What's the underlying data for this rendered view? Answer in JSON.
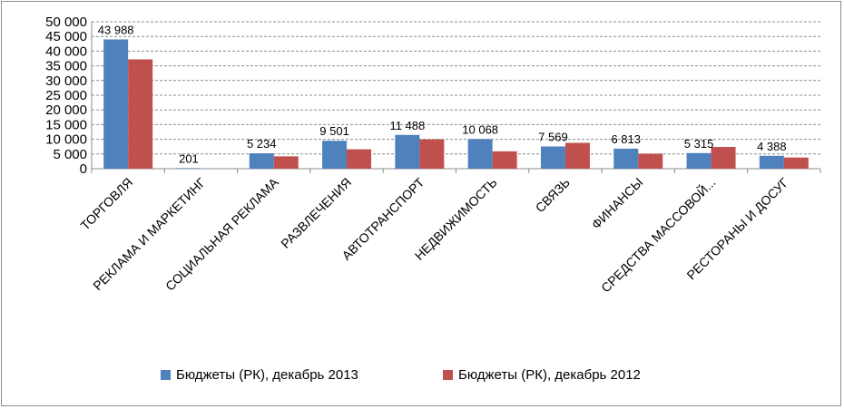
{
  "chart_data": {
    "type": "bar",
    "categories": [
      "ТОРГОВЛЯ",
      "РЕКЛАМА И МАРКЕТИНГ",
      "СОЦИАЛЬНАЯ РЕКЛАМА",
      "РАЗВЛЕЧЕНИЯ",
      "АВТОТРАНСПОРТ",
      "НЕДВИЖИМОСТЬ",
      "СВЯЗЬ",
      "ФИНАНСЫ",
      "СРЕДСТВА МАССОВОЙ...",
      "РЕСТОРАНЫ И ДОСУГ"
    ],
    "series": [
      {
        "name": "Бюджеты (РК), декабрь 2013",
        "color": "#4f81bd",
        "values": [
          43988,
          201,
          5234,
          9501,
          11488,
          10068,
          7569,
          6813,
          5315,
          4388
        ]
      },
      {
        "name": "Бюджеты (РК), декабрь 2012",
        "color": "#c0504d",
        "values": [
          37200,
          0,
          4200,
          6600,
          10000,
          5900,
          8800,
          5100,
          7400,
          3800
        ]
      }
    ],
    "data_labels": [
      "43 988",
      "201",
      "5 234",
      "9 501",
      "11 488",
      "10 068",
      "7 569",
      "6 813",
      "5 315",
      "4 388"
    ],
    "y_ticks": [
      "0",
      "5 000",
      "10 000",
      "15 000",
      "20 000",
      "25 000",
      "30 000",
      "35 000",
      "40 000",
      "45 000",
      "50 000"
    ],
    "ylim": [
      0,
      50000
    ],
    "grid": "dashed-horizontal",
    "legend_position": "bottom"
  }
}
